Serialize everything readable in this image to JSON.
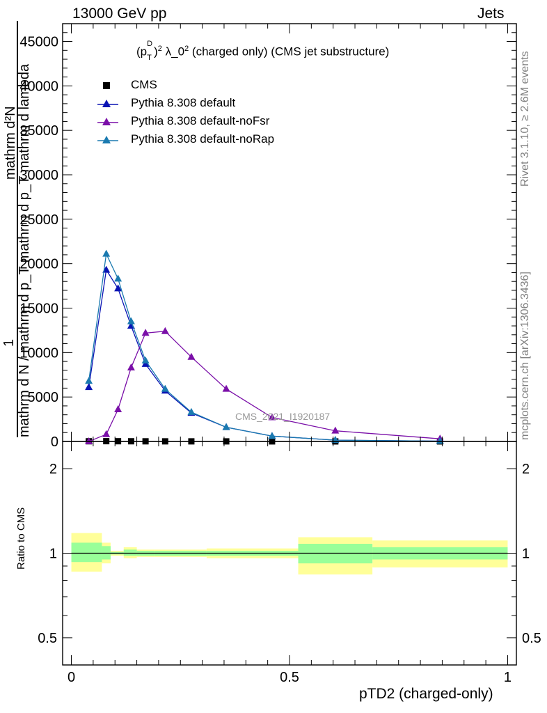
{
  "header": {
    "left": "13000 GeV pp",
    "right": "Jets"
  },
  "side_labels": {
    "rivet": "Rivet 3.1.10, ≥ 2.6M events",
    "mcplots": "mcplots.cern.ch [arXiv:1306.3436]"
  },
  "main_title_parts": {
    "p": "(p",
    "sup_d": "D",
    "sub_t": "T",
    "close": ")",
    "sup_2": "2",
    "lambda": " λ_0",
    "rest": " (charged only) (CMS jet substructure)"
  },
  "watermark": "CMS_2021_I1920187",
  "y_axis_label": {
    "one": "1",
    "numerator": "mathrm d²N",
    "denominator": "mathrm d N / mathrm d p_T mathrm d p_T mathrm d lambda"
  },
  "ratio_ylabel": "Ratio to CMS",
  "xlabel": "pTD2 (charged-only)",
  "legend": [
    {
      "label": "CMS",
      "marker": "square",
      "color": "#000000"
    },
    {
      "label": "Pythia 8.308 default",
      "marker": "triangle",
      "color": "#0a14b4"
    },
    {
      "label": "Pythia 8.308 default-noFsr",
      "marker": "triangle",
      "color": "#7a0fa8"
    },
    {
      "label": "Pythia 8.308 default-noRap",
      "marker": "triangle",
      "color": "#1a7ab0"
    }
  ],
  "chart_data": {
    "type": "line",
    "x": [
      0.04,
      0.08,
      0.107,
      0.137,
      0.17,
      0.215,
      0.275,
      0.355,
      0.46,
      0.605,
      0.845
    ],
    "xlim": [
      -0.02,
      1.02
    ],
    "main_ylim": [
      0,
      47000
    ],
    "main_yticks": [
      0,
      5000,
      10000,
      15000,
      20000,
      25000,
      30000,
      35000,
      40000,
      45000
    ],
    "main_ytick_labels": [
      "0",
      "5000",
      "10000",
      "15000",
      "20000",
      "25000",
      "30000",
      "35000",
      "40000",
      "45000"
    ],
    "xticks": [
      0,
      0.5,
      1
    ],
    "xtick_labels": [
      "0",
      "0.5",
      "1"
    ],
    "series": [
      {
        "name": "CMS",
        "marker": "square",
        "color": "#000000",
        "values": [
          20,
          30,
          25,
          20,
          15,
          12,
          10,
          8,
          6,
          4,
          3
        ]
      },
      {
        "name": "Pythia 8.308 default",
        "marker": "triangle",
        "color": "#0a14b4",
        "values": [
          6100,
          19300,
          17200,
          13000,
          8700,
          5700,
          3200,
          1600,
          600,
          150,
          40
        ]
      },
      {
        "name": "Pythia 8.308 default-noFsr",
        "marker": "triangle",
        "color": "#7a0fa8",
        "values": [
          0,
          800,
          3600,
          8300,
          12200,
          12400,
          9500,
          5900,
          2700,
          1200,
          300
        ]
      },
      {
        "name": "Pythia 8.308 default-noRap",
        "marker": "triangle",
        "color": "#1a7ab0",
        "values": [
          6800,
          21100,
          18300,
          13500,
          9100,
          5900,
          3300,
          1600,
          600,
          150,
          40
        ]
      }
    ],
    "ratio_panel": {
      "ylabel": "Ratio to CMS",
      "yscale": "log",
      "ylim": [
        0.4,
        2.5
      ],
      "yticks": [
        0.5,
        1,
        2
      ],
      "ytick_labels": [
        "0.5",
        "1",
        "2"
      ],
      "bands": [
        {
          "x0": 0.0,
          "x1": 0.07,
          "inner": [
            0.93,
            1.09
          ],
          "outer": [
            0.86,
            1.18
          ]
        },
        {
          "x0": 0.07,
          "x1": 0.09,
          "inner": [
            0.95,
            1.06
          ],
          "outer": [
            0.92,
            1.09
          ]
        },
        {
          "x0": 0.09,
          "x1": 0.12,
          "inner": [
            0.99,
            1.01
          ],
          "outer": [
            0.98,
            1.02
          ]
        },
        {
          "x0": 0.12,
          "x1": 0.15,
          "inner": [
            0.98,
            1.03
          ],
          "outer": [
            0.96,
            1.05
          ]
        },
        {
          "x0": 0.15,
          "x1": 0.19,
          "inner": [
            0.98,
            1.02
          ],
          "outer": [
            0.97,
            1.03
          ]
        },
        {
          "x0": 0.19,
          "x1": 0.31,
          "inner": [
            0.98,
            1.02
          ],
          "outer": [
            0.97,
            1.03
          ]
        },
        {
          "x0": 0.31,
          "x1": 0.52,
          "inner": [
            0.98,
            1.02
          ],
          "outer": [
            0.96,
            1.04
          ]
        },
        {
          "x0": 0.52,
          "x1": 0.69,
          "inner": [
            0.92,
            1.08
          ],
          "outer": [
            0.84,
            1.14
          ]
        },
        {
          "x0": 0.69,
          "x1": 1.0,
          "inner": [
            0.95,
            1.05
          ],
          "outer": [
            0.89,
            1.11
          ]
        }
      ],
      "inner_color": "#99ff99",
      "outer_color": "#ffff99"
    }
  }
}
